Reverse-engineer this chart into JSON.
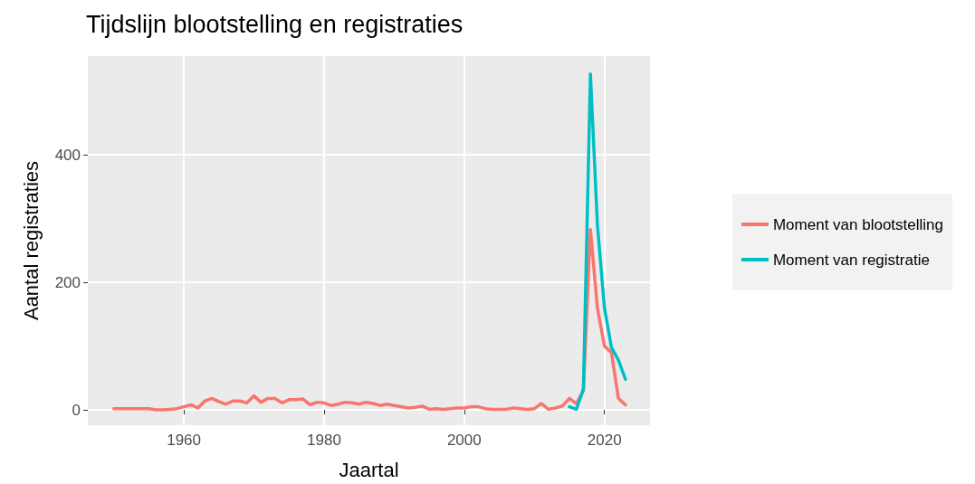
{
  "chart_data": {
    "type": "line",
    "title": "Tijdslijn blootstelling en registraties",
    "xlabel": "Jaartal",
    "ylabel": "Aantal registraties",
    "xlim": [
      1946.3,
      2026.5
    ],
    "xticks": [
      1960,
      1980,
      2000,
      2020
    ],
    "ylim": [
      -24,
      555
    ],
    "yticks": [
      0,
      200,
      400
    ],
    "grid": true,
    "legend": "right",
    "line_style": "solid",
    "marker": "none",
    "series": [
      {
        "name": "Moment van blootstelling",
        "color": "#f8766d",
        "x": [
          1950,
          1951,
          1952,
          1953,
          1954,
          1955,
          1956,
          1957,
          1958,
          1959,
          1960,
          1961,
          1962,
          1963,
          1964,
          1965,
          1966,
          1967,
          1968,
          1969,
          1970,
          1971,
          1972,
          1973,
          1974,
          1975,
          1976,
          1977,
          1978,
          1979,
          1980,
          1981,
          1982,
          1983,
          1984,
          1985,
          1986,
          1987,
          1988,
          1989,
          1990,
          1991,
          1992,
          1993,
          1994,
          1995,
          1996,
          1997,
          1998,
          1999,
          2000,
          2001,
          2002,
          2003,
          2004,
          2005,
          2006,
          2007,
          2008,
          2009,
          2010,
          2011,
          2012,
          2013,
          2014,
          2015,
          2016,
          2017,
          2018,
          2019,
          2020,
          2021,
          2022,
          2023
        ],
        "values": [
          2,
          2,
          2,
          2,
          2,
          2,
          0,
          0,
          1,
          2,
          5,
          8,
          3,
          14,
          18,
          13,
          9,
          14,
          14,
          11,
          22,
          12,
          18,
          18,
          11,
          16,
          16,
          17,
          8,
          12,
          11,
          7,
          9,
          12,
          11,
          9,
          12,
          10,
          7,
          9,
          7,
          5,
          3,
          4,
          6,
          1,
          2,
          1,
          2,
          3,
          3,
          5,
          5,
          2,
          1,
          1,
          1,
          3,
          2,
          1,
          2,
          10,
          1,
          3,
          6,
          18,
          10,
          30,
          283,
          160,
          100,
          90,
          18,
          8
        ]
      },
      {
        "name": "Moment van registratie",
        "color": "#00bfc4",
        "x": [
          2015,
          2016,
          2017,
          2018,
          2019,
          2020,
          2021,
          2022,
          2023
        ],
        "values": [
          5,
          1,
          33,
          527,
          290,
          160,
          98,
          78,
          48
        ]
      }
    ]
  }
}
